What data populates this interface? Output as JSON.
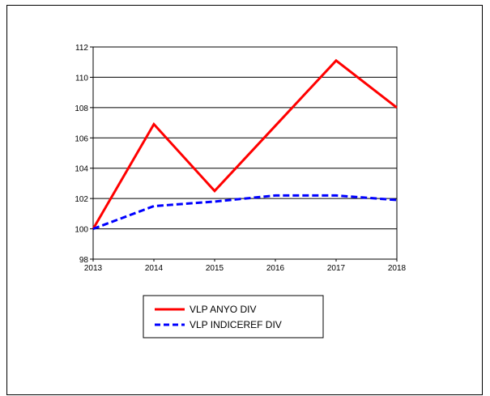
{
  "chart_data": {
    "type": "line",
    "title": "",
    "xlabel": "",
    "ylabel": "",
    "x": [
      2013,
      2014,
      2015,
      2016,
      2017,
      2018
    ],
    "xlim": [
      2013,
      2018
    ],
    "ylim": [
      98,
      112
    ],
    "yticks": [
      98,
      100,
      102,
      104,
      106,
      108,
      110,
      112
    ],
    "xticks": [
      "2013",
      "2014",
      "2015",
      "2016",
      "2017",
      "2018"
    ],
    "grid": "horizontal",
    "legend_position": "bottom",
    "series": [
      {
        "name": "VLP ANYO DIV",
        "values": [
          100.0,
          106.9,
          102.5,
          106.8,
          111.1,
          108.0
        ],
        "color": "#ff0000",
        "style": "solid"
      },
      {
        "name": "VLP INDICEREF DIV",
        "values": [
          100.0,
          101.5,
          101.8,
          102.2,
          102.2,
          101.9
        ],
        "color": "#0000ff",
        "style": "dashed"
      }
    ]
  }
}
